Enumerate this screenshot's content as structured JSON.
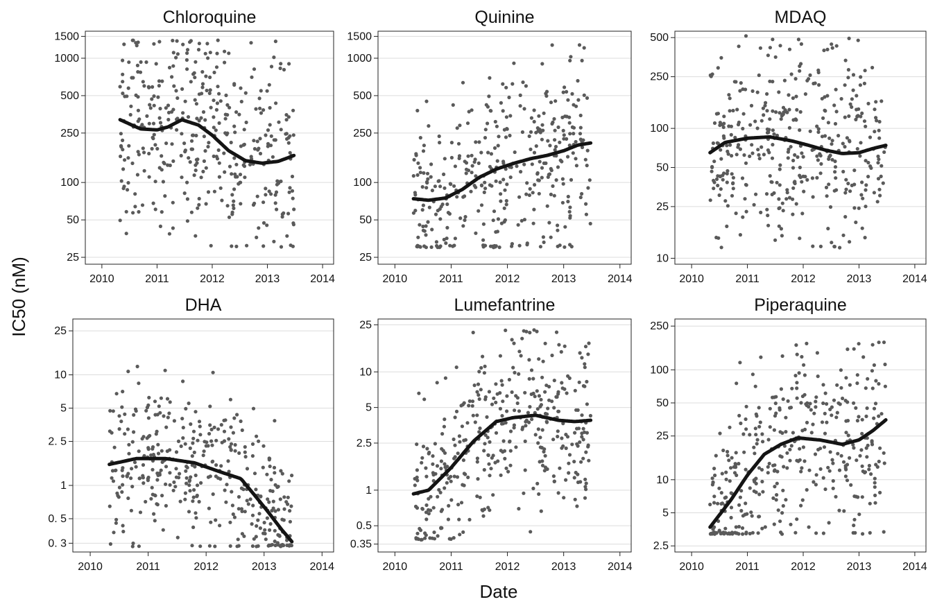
{
  "figure": {
    "ylabel": "IC50 (nM)",
    "xlabel": "Date"
  },
  "chart_data": [
    {
      "type": "scatter",
      "title": "Chloroquine",
      "yscale": "log",
      "ylim": [
        22,
        1650
      ],
      "xlim": [
        2009.7,
        2014.2
      ],
      "yticks": [
        25,
        50,
        100,
        250,
        500,
        1000,
        1500
      ],
      "ytick_labels": [
        "25",
        "50",
        "100",
        "250",
        "500",
        "1000",
        "1500"
      ],
      "xticks": [
        2010,
        2011,
        2012,
        2013,
        2014
      ],
      "point_count": 400,
      "points_seed": 11,
      "points_model": {
        "spread": 0.55,
        "floor": 30,
        "cap": 1400
      },
      "trend": {
        "x": [
          2010.33,
          2010.7,
          2011.0,
          2011.2,
          2011.45,
          2011.75,
          2012.0,
          2012.3,
          2012.6,
          2012.9,
          2013.2,
          2013.48
        ],
        "y": [
          320,
          270,
          265,
          280,
          320,
          290,
          240,
          180,
          150,
          143,
          148,
          165
        ]
      }
    },
    {
      "type": "scatter",
      "title": "Quinine",
      "yscale": "log",
      "ylim": [
        22,
        1650
      ],
      "xlim": [
        2009.7,
        2014.2
      ],
      "yticks": [
        25,
        50,
        100,
        250,
        500,
        1000,
        1500
      ],
      "ytick_labels": [
        "25",
        "50",
        "100",
        "250",
        "500",
        "1000",
        "1500"
      ],
      "xticks": [
        2010,
        2011,
        2012,
        2013,
        2014
      ],
      "point_count": 380,
      "points_seed": 23,
      "points_model": {
        "spread": 0.5,
        "floor": 30,
        "cap": 1300
      },
      "trend": {
        "x": [
          2010.33,
          2010.6,
          2010.9,
          2011.2,
          2011.5,
          2011.8,
          2012.1,
          2012.4,
          2012.7,
          2013.0,
          2013.25,
          2013.48
        ],
        "y": [
          74,
          72,
          75,
          88,
          110,
          128,
          142,
          155,
          165,
          180,
          200,
          208
        ]
      }
    },
    {
      "type": "scatter",
      "title": "MDAQ",
      "yscale": "log",
      "ylim": [
        9,
        560
      ],
      "xlim": [
        2009.7,
        2014.2
      ],
      "yticks": [
        10,
        25,
        50,
        100,
        250,
        500
      ],
      "ytick_labels": [
        "10",
        "25",
        "50",
        "100",
        "250",
        "500"
      ],
      "xticks": [
        2010,
        2011,
        2012,
        2013,
        2014
      ],
      "point_count": 400,
      "points_seed": 37,
      "points_model": {
        "spread": 0.5,
        "floor": 12,
        "cap": 520
      },
      "trend": {
        "x": [
          2010.33,
          2010.6,
          2011.0,
          2011.4,
          2011.8,
          2012.1,
          2012.4,
          2012.7,
          2013.0,
          2013.25,
          2013.48
        ],
        "y": [
          65,
          78,
          84,
          86,
          80,
          74,
          68,
          64,
          65,
          70,
          74
        ]
      }
    },
    {
      "type": "scatter",
      "title": "DHA",
      "yscale": "log",
      "ylim": [
        0.25,
        32
      ],
      "xlim": [
        2009.7,
        2014.2
      ],
      "yticks": [
        0.3,
        0.5,
        1,
        2.5,
        5,
        10,
        25
      ],
      "ytick_labels": [
        "0. 3",
        "0. 5",
        "1",
        "2. 5",
        "5",
        "10",
        "25"
      ],
      "xticks": [
        2010,
        2011,
        2012,
        2013,
        2014
      ],
      "point_count": 400,
      "points_seed": 41,
      "points_model": {
        "spread": 0.45,
        "floor": 0.28,
        "cap": 16
      },
      "trend": {
        "x": [
          2010.33,
          2010.8,
          2011.3,
          2011.8,
          2012.2,
          2012.6,
          2012.85,
          2013.1,
          2013.3,
          2013.48
        ],
        "y": [
          1.55,
          1.75,
          1.75,
          1.6,
          1.35,
          1.15,
          0.8,
          0.55,
          0.4,
          0.31
        ]
      }
    },
    {
      "type": "scatter",
      "title": "Lumefantrine",
      "yscale": "log",
      "ylim": [
        0.3,
        28
      ],
      "xlim": [
        2009.7,
        2014.2
      ],
      "yticks": [
        0.35,
        0.5,
        1,
        2.5,
        5,
        10,
        25
      ],
      "ytick_labels": [
        "0.35",
        "0.5",
        "1",
        "2.5",
        "5",
        "10",
        "25"
      ],
      "xticks": [
        2010,
        2011,
        2012,
        2013,
        2014
      ],
      "point_count": 400,
      "points_seed": 53,
      "points_model": {
        "spread": 0.5,
        "floor": 0.38,
        "cap": 23
      },
      "trend": {
        "x": [
          2010.33,
          2010.6,
          2011.0,
          2011.4,
          2011.8,
          2012.1,
          2012.5,
          2012.9,
          2013.2,
          2013.48
        ],
        "y": [
          0.93,
          1.0,
          1.55,
          2.6,
          3.8,
          4.1,
          4.3,
          3.9,
          3.8,
          3.9
        ]
      }
    },
    {
      "type": "scatter",
      "title": "Piperaquine",
      "yscale": "log",
      "ylim": [
        2.2,
        290
      ],
      "xlim": [
        2009.7,
        2014.2
      ],
      "yticks": [
        2.5,
        5,
        10,
        25,
        50,
        100,
        250
      ],
      "ytick_labels": [
        "2.5",
        "5",
        "10",
        "25",
        "50",
        "100",
        "250"
      ],
      "xticks": [
        2010,
        2011,
        2012,
        2013,
        2014
      ],
      "point_count": 400,
      "points_seed": 67,
      "points_model": {
        "spread": 0.55,
        "floor": 3.2,
        "cap": 180
      },
      "trend": {
        "x": [
          2010.33,
          2010.7,
          2011.0,
          2011.3,
          2011.6,
          2011.9,
          2012.3,
          2012.7,
          2013.0,
          2013.25,
          2013.48
        ],
        "y": [
          3.7,
          6.5,
          11,
          17,
          21,
          24,
          23,
          21,
          23,
          28,
          35
        ]
      }
    }
  ]
}
